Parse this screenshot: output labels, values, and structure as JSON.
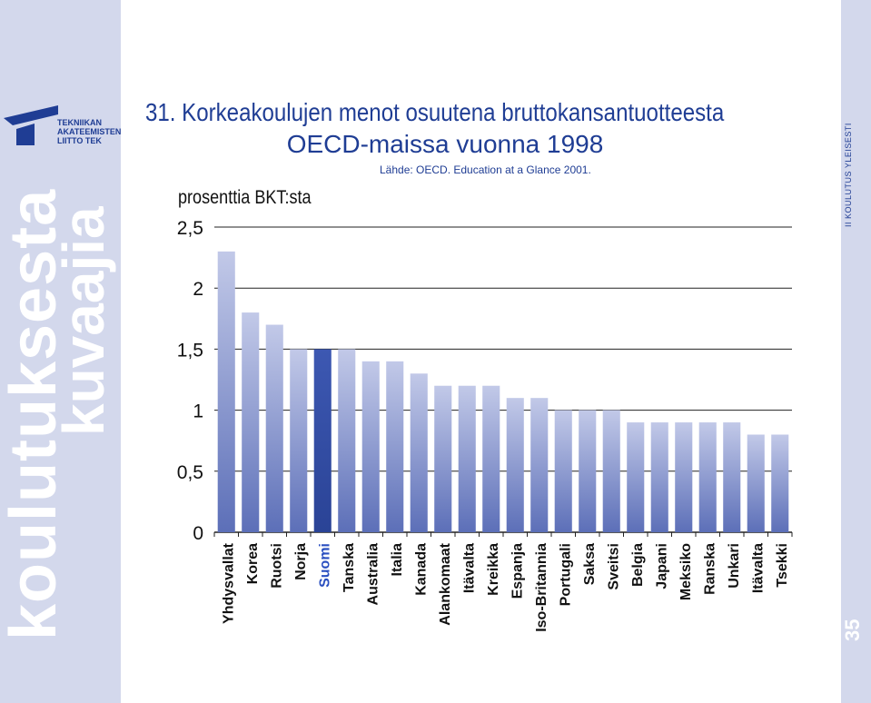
{
  "sidebar": {
    "vertical_text_1": "koulutuksesta",
    "vertical_text_2": "kuvaajia",
    "logo_lines": [
      "TEKNIIKAN",
      "AKATEEMISTEN",
      "LIITTO TEK"
    ]
  },
  "right_sidebar": {
    "section_label": "II    KOULUTUS YLEISESTI",
    "page_number": "35"
  },
  "colors": {
    "band": "#d3d8ec",
    "title": "#1f3d94",
    "bar_top": "#c2c9e8",
    "bar_bottom": "#5c6fb8",
    "highlight_top": "#3d58b2",
    "highlight_bottom": "#2a4396"
  },
  "chart_data": {
    "type": "bar",
    "title": "31. Korkeakoulujen menot osuutena bruttokansantuotteesta",
    "subtitle": "OECD-maissa vuonna 1998",
    "source": "Lähde: OECD. Education at a Glance 2001.",
    "ylabel": "prosenttia BKT:sta",
    "ylim": [
      0,
      2.5
    ],
    "yticks": [
      "0",
      "0,5",
      "1",
      "1,5",
      "2",
      "2,5"
    ],
    "ytick_values": [
      0,
      0.5,
      1,
      1.5,
      2,
      2.5
    ],
    "grid": true,
    "highlight_category": "Suomi",
    "categories": [
      "Yhdysvallat",
      "Korea",
      "Ruotsi",
      "Norja",
      "Suomi",
      "Tanska",
      "Australia",
      "Italia",
      "Kanada",
      "Alankomaat",
      "Itävalta",
      "Kreikka",
      "Espanja",
      "Iso-Britannia",
      "Portugali",
      "Saksa",
      "Sveitsi",
      "Belgia",
      "Japani",
      "Meksiko",
      "Ranska",
      "Unkari",
      "Itävalta",
      "Tsekki"
    ],
    "values": [
      2.3,
      1.8,
      1.7,
      1.5,
      1.5,
      1.5,
      1.4,
      1.4,
      1.3,
      1.2,
      1.2,
      1.2,
      1.1,
      1.1,
      1.0,
      1.0,
      1.0,
      0.9,
      0.9,
      0.9,
      0.9,
      0.9,
      0.8,
      0.8
    ]
  }
}
